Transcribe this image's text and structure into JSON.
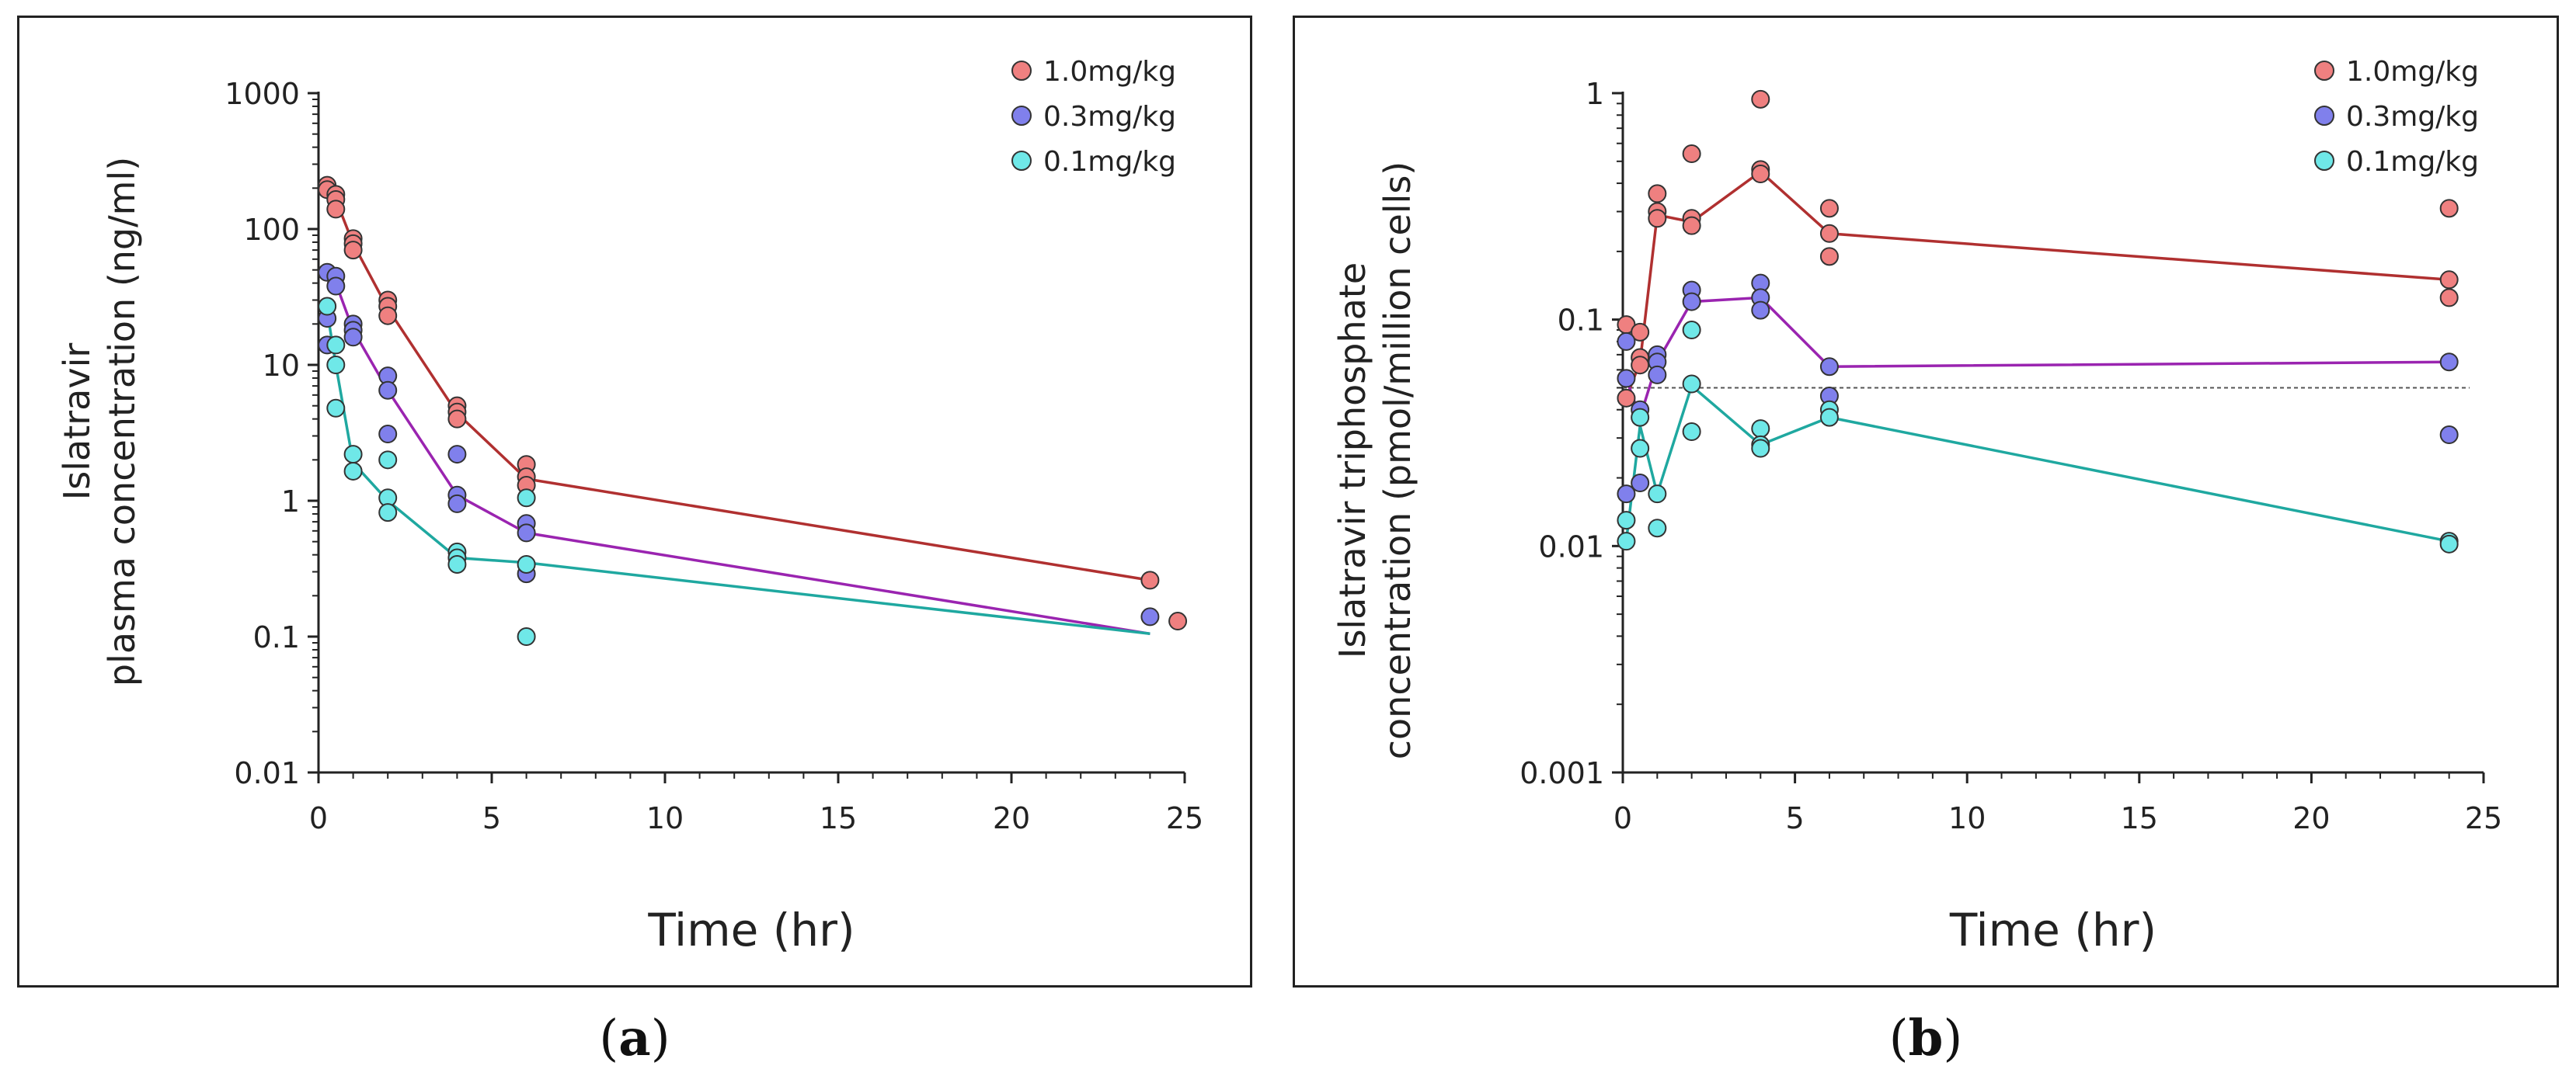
{
  "chart_data": [
    {
      "type": "scatter",
      "panel": "a",
      "ylabel_line1": "Islatravir",
      "ylabel_line2": "plasma concentration (ng/ml)",
      "xlabel": "Time (hr)",
      "yscale": "log",
      "xlim": [
        0,
        25
      ],
      "ylim": [
        0.01,
        1000
      ],
      "x_ticks": [
        "0",
        "5",
        "10",
        "15",
        "20",
        "25"
      ],
      "y_ticks": [
        "0.01",
        "0.1",
        "1",
        "10",
        "100",
        "1000"
      ],
      "legend_position": "top-right",
      "series": [
        {
          "name": "1.0mg/kg",
          "point_color": "#ef8080",
          "line_color": "#b03030",
          "points": [
            [
              0.25,
              210
            ],
            [
              0.25,
              195
            ],
            [
              0.5,
              180
            ],
            [
              0.5,
              165
            ],
            [
              0.5,
              140
            ],
            [
              1,
              85
            ],
            [
              1,
              78
            ],
            [
              1,
              70
            ],
            [
              2,
              30
            ],
            [
              2,
              27
            ],
            [
              2,
              23
            ],
            [
              4,
              5
            ],
            [
              4,
              4.5
            ],
            [
              4,
              4
            ],
            [
              6,
              1.85
            ],
            [
              6,
              1.5
            ],
            [
              6,
              1.3
            ],
            [
              24,
              0.26
            ],
            [
              24.8,
              0.13
            ]
          ],
          "line": [
            [
              0.25,
              200
            ],
            [
              0.5,
              165
            ],
            [
              1,
              78
            ],
            [
              2,
              26
            ],
            [
              4,
              4.4
            ],
            [
              6,
              1.45
            ],
            [
              24,
              0.26
            ]
          ]
        },
        {
          "name": "0.3mg/kg",
          "point_color": "#8080ec",
          "line_color": "#9a24b0",
          "points": [
            [
              0.25,
              48
            ],
            [
              0.25,
              22
            ],
            [
              0.25,
              14
            ],
            [
              0.5,
              45
            ],
            [
              0.5,
              38
            ],
            [
              1,
              20
            ],
            [
              1,
              18
            ],
            [
              1,
              16
            ],
            [
              2,
              8.3
            ],
            [
              2,
              6.5
            ],
            [
              2,
              3.1
            ],
            [
              4,
              2.2
            ],
            [
              4,
              1.1
            ],
            [
              4,
              0.95
            ],
            [
              6,
              0.68
            ],
            [
              6,
              0.58
            ],
            [
              6,
              0.29
            ],
            [
              24,
              0.14
            ]
          ],
          "line": [
            [
              0.25,
              40
            ],
            [
              0.5,
              40
            ],
            [
              1,
              18
            ],
            [
              2,
              6.5
            ],
            [
              4,
              1.1
            ],
            [
              6,
              0.58
            ],
            [
              24,
              0.105
            ]
          ]
        },
        {
          "name": "0.1mg/kg",
          "point_color": "#6fe8e8",
          "line_color": "#1fa8a0",
          "points": [
            [
              0.25,
              27
            ],
            [
              0.5,
              14
            ],
            [
              0.5,
              10
            ],
            [
              0.5,
              4.8
            ],
            [
              1,
              2.2
            ],
            [
              1,
              1.65
            ],
            [
              2,
              2
            ],
            [
              2,
              1.05
            ],
            [
              2,
              0.82
            ],
            [
              4,
              0.42
            ],
            [
              4,
              0.38
            ],
            [
              4,
              0.34
            ],
            [
              6,
              1.05
            ],
            [
              6,
              0.34
            ],
            [
              6,
              0.1
            ]
          ],
          "line": [
            [
              0.25,
              25
            ],
            [
              0.5,
              10
            ],
            [
              1,
              1.9
            ],
            [
              2,
              1.0
            ],
            [
              4,
              0.38
            ],
            [
              6,
              0.35
            ],
            [
              24,
              0.105
            ]
          ]
        }
      ]
    },
    {
      "type": "scatter",
      "panel": "b",
      "ylabel_line1": "Islatravir triphosphate",
      "ylabel_line2": "concentration (pmol/million cells)",
      "xlabel": "Time (hr)",
      "yscale": "log",
      "xlim": [
        0,
        25
      ],
      "ylim": [
        0.001,
        1
      ],
      "x_ticks": [
        "0",
        "5",
        "10",
        "15",
        "20",
        "25"
      ],
      "y_ticks": [
        "0.001",
        "0.01",
        "0.1",
        "1"
      ],
      "reference_line_y": 0.05,
      "legend_position": "top-right",
      "series": [
        {
          "name": "1.0mg/kg",
          "point_color": "#ef8080",
          "line_color": "#b03030",
          "points": [
            [
              0.1,
              0.095
            ],
            [
              0.1,
              0.045
            ],
            [
              0.5,
              0.088
            ],
            [
              0.5,
              0.068
            ],
            [
              0.5,
              0.063
            ],
            [
              1,
              0.36
            ],
            [
              1,
              0.3
            ],
            [
              1,
              0.28
            ],
            [
              2,
              0.54
            ],
            [
              2,
              0.28
            ],
            [
              2,
              0.26
            ],
            [
              4,
              0.94
            ],
            [
              4,
              0.46
            ],
            [
              4,
              0.44
            ],
            [
              6,
              0.31
            ],
            [
              6,
              0.24
            ],
            [
              6,
              0.19
            ],
            [
              24,
              0.31
            ],
            [
              24,
              0.15
            ],
            [
              24,
              0.125
            ]
          ],
          "line": [
            [
              0.1,
              0.045
            ],
            [
              0.5,
              0.065
            ],
            [
              1,
              0.29
            ],
            [
              2,
              0.27
            ],
            [
              4,
              0.45
            ],
            [
              6,
              0.24
            ],
            [
              24,
              0.15
            ]
          ]
        },
        {
          "name": "0.3mg/kg",
          "point_color": "#8080ec",
          "line_color": "#9a24b0",
          "points": [
            [
              0.1,
              0.08
            ],
            [
              0.1,
              0.055
            ],
            [
              0.1,
              0.017
            ],
            [
              0.5,
              0.04
            ],
            [
              0.5,
              0.019
            ],
            [
              1,
              0.07
            ],
            [
              1,
              0.065
            ],
            [
              1,
              0.057
            ],
            [
              2,
              0.135
            ],
            [
              2,
              0.12
            ],
            [
              4,
              0.145
            ],
            [
              4,
              0.125
            ],
            [
              4,
              0.11
            ],
            [
              6,
              0.062
            ],
            [
              6,
              0.046
            ],
            [
              24,
              0.065
            ],
            [
              24,
              0.031
            ]
          ],
          "line": [
            [
              0.1,
              0.055
            ],
            [
              0.5,
              0.037
            ],
            [
              1,
              0.065
            ],
            [
              2,
              0.12
            ],
            [
              4,
              0.125
            ],
            [
              6,
              0.062
            ],
            [
              24,
              0.065
            ]
          ]
        },
        {
          "name": "0.1mg/kg",
          "point_color": "#6fe8e8",
          "line_color": "#1fa8a0",
          "points": [
            [
              0.1,
              0.013
            ],
            [
              0.1,
              0.0105
            ],
            [
              0.5,
              0.037
            ],
            [
              0.5,
              0.027
            ],
            [
              1,
              0.017
            ],
            [
              1,
              0.012
            ],
            [
              2,
              0.09
            ],
            [
              2,
              0.052
            ],
            [
              2,
              0.032
            ],
            [
              4,
              0.033
            ],
            [
              4,
              0.028
            ],
            [
              4,
              0.027
            ],
            [
              6,
              0.04
            ],
            [
              6,
              0.037
            ],
            [
              24,
              0.0105
            ],
            [
              24,
              0.0102
            ]
          ],
          "line": [
            [
              0.1,
              0.0105
            ],
            [
              0.5,
              0.034
            ],
            [
              1,
              0.017
            ],
            [
              2,
              0.051
            ],
            [
              4,
              0.028
            ],
            [
              6,
              0.037
            ],
            [
              24,
              0.0105
            ]
          ]
        }
      ]
    }
  ],
  "captions": {
    "a": "a",
    "b": "b"
  }
}
